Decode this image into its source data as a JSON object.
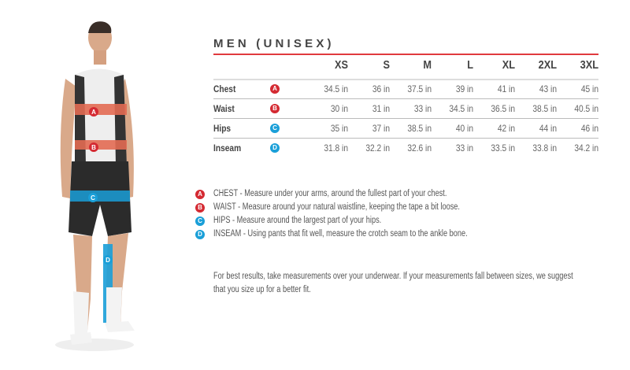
{
  "title": "MEN (UNISEX)",
  "colors": {
    "accent_red": "#e03a3e",
    "badge_red": "#d42a32",
    "badge_blue": "#1a9fd8"
  },
  "sizes": [
    "XS",
    "S",
    "M",
    "L",
    "XL",
    "2XL",
    "3XL"
  ],
  "rows": [
    {
      "label": "Chest",
      "badge": "A",
      "color": "red",
      "values": [
        "34.5 in",
        "36 in",
        "37.5 in",
        "39 in",
        "41 in",
        "43 in",
        "45 in"
      ]
    },
    {
      "label": "Waist",
      "badge": "B",
      "color": "red",
      "values": [
        "30 in",
        "31 in",
        "33 in",
        "34.5 in",
        "36.5 in",
        "38.5 in",
        "40.5 in"
      ]
    },
    {
      "label": "Hips",
      "badge": "C",
      "color": "blue",
      "values": [
        "35 in",
        "37 in",
        "38.5 in",
        "40 in",
        "42 in",
        "44 in",
        "46 in"
      ]
    },
    {
      "label": "Inseam",
      "badge": "D",
      "color": "blue",
      "values": [
        "31.8 in",
        "32.2 in",
        "32.6 in",
        "33 in",
        "33.5 in",
        "33.8 in",
        "34.2 in"
      ]
    }
  ],
  "legend": [
    {
      "badge": "A",
      "color": "red",
      "text": "CHEST - Measure under your arms, around the fullest part of your chest."
    },
    {
      "badge": "B",
      "color": "red",
      "text": "WAIST - Measure around your natural waistline, keeping the tape a bit loose."
    },
    {
      "badge": "C",
      "color": "blue",
      "text": "HIPS - Measure around the largest part of your hips."
    },
    {
      "badge": "D",
      "color": "blue",
      "text": "INSEAM - Using pants that fit well, measure the crotch seam to the ankle bone."
    }
  ],
  "note": [
    "For best results, take measurements over your underwear. If your measurements fall between sizes, we suggest",
    "that you size up for a better fit."
  ],
  "figure": {
    "badges": [
      "A",
      "B",
      "C",
      "D"
    ]
  }
}
